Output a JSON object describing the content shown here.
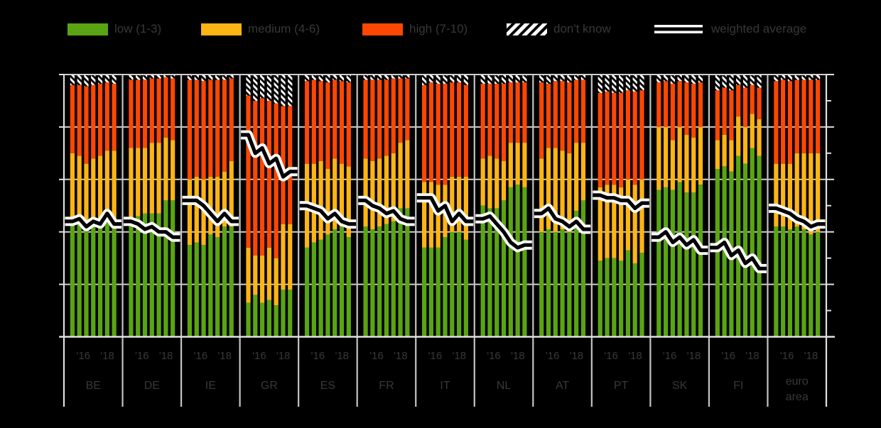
{
  "legend": {
    "items": [
      {
        "label": "low (1-3)",
        "swatch": "low-color-swatch"
      },
      {
        "label": "medium (4-6)",
        "swatch": "medium-color-swatch"
      },
      {
        "label": "high (7-10)",
        "swatch": "high-color-swatch"
      },
      {
        "label": "don't know",
        "swatch": "dont-know-hatch-swatch"
      },
      {
        "label": "weighted average",
        "swatch": "weighted-average-line-swatch"
      }
    ]
  },
  "chart_data": {
    "type": "bar",
    "stacked": true,
    "grid": true,
    "legend_position": "top",
    "ylim": [
      0,
      100
    ],
    "y_major_step": 20,
    "y_minor_step": 10,
    "x_tick_labels": [
      "'16",
      "'18"
    ],
    "bars_per_panel": 7,
    "series_labels": [
      "low (1-3)",
      "medium (4-6)",
      "high (7-10)",
      "don't know",
      "weighted average"
    ],
    "colors": {
      "low": "#5aa414",
      "medium": "#fdb515",
      "high": "#fd4703",
      "dont_know_bg": "#ffffff",
      "dont_know_stripe": "#000000",
      "line_core": "#000000",
      "line_casing": "#ffffff",
      "grid": "#cfcfcf",
      "axis": "#e0e0e0",
      "background": "#000000",
      "faint_text": "#383838"
    },
    "panels": [
      {
        "code": "BE",
        "low": [
          45,
          44,
          41,
          43,
          45,
          46,
          44
        ],
        "medium": [
          25,
          25,
          25,
          25,
          24,
          25,
          27
        ],
        "high": [
          26,
          27,
          29.5,
          28,
          27.5,
          26,
          25.5
        ],
        "dont_know": [
          4,
          4,
          4.5,
          4,
          3.5,
          3,
          3.5
        ],
        "weighted_average": [
          44,
          45,
          42,
          44,
          43,
          47,
          43
        ]
      },
      {
        "code": "DE",
        "low": [
          44,
          46,
          47,
          47,
          47,
          52,
          52
        ],
        "medium": [
          28,
          26,
          25,
          27,
          27,
          24,
          23
        ],
        "high": [
          26,
          26,
          26,
          24.5,
          24.5,
          23,
          23.5
        ],
        "dont_know": [
          2,
          2,
          2,
          1.5,
          1.5,
          1,
          1.5
        ],
        "weighted_average": [
          44,
          43,
          41,
          42,
          40,
          40,
          38
        ]
      },
      {
        "code": "IE",
        "low": [
          35,
          36,
          35,
          39,
          38,
          42,
          42
        ],
        "medium": [
          25,
          25,
          25,
          22,
          23,
          21,
          25
        ],
        "high": [
          38,
          37,
          37.5,
          37,
          37,
          35,
          31.5
        ],
        "dont_know": [
          2,
          2,
          2.5,
          2,
          2,
          2,
          1.5
        ],
        "weighted_average": [
          52,
          52,
          50,
          47,
          44,
          47,
          44
        ]
      },
      {
        "code": "GR",
        "low": [
          13,
          16,
          13,
          14,
          12,
          18,
          18
        ],
        "medium": [
          21,
          15,
          18,
          20,
          18,
          25,
          25
        ],
        "high": [
          58,
          59,
          60,
          56,
          59,
          45,
          45
        ],
        "dont_know": [
          8,
          10,
          9,
          10,
          11,
          12,
          12
        ],
        "weighted_average": [
          77,
          70,
          72,
          66,
          68,
          61,
          63
        ]
      },
      {
        "code": "ES",
        "low": [
          34,
          36,
          37,
          39,
          41,
          42,
          38
        ],
        "medium": [
          32,
          30,
          30,
          25,
          27,
          24,
          27
        ],
        "high": [
          31.5,
          32,
          30.5,
          33,
          30,
          31.5,
          32
        ],
        "dont_know": [
          2.5,
          2,
          2.5,
          3,
          2,
          2.5,
          3
        ],
        "weighted_average": [
          50,
          49,
          48,
          45,
          47,
          44,
          43
        ]
      },
      {
        "code": "FR",
        "low": [
          42,
          41,
          42,
          43,
          44,
          49,
          49
        ],
        "medium": [
          26,
          26,
          26,
          26,
          26,
          25,
          26
        ],
        "high": [
          30,
          31,
          30,
          29,
          28.5,
          24.5,
          23.5
        ],
        "dont_know": [
          2,
          2,
          2,
          2,
          1.5,
          1.5,
          1.5
        ],
        "weighted_average": [
          52,
          50,
          49,
          47,
          48,
          45,
          44
        ]
      },
      {
        "code": "IT",
        "low": [
          34,
          34,
          34,
          38,
          40,
          40,
          37
        ],
        "medium": [
          25,
          25,
          24,
          20,
          21,
          21,
          24
        ],
        "high": [
          37,
          38,
          38.5,
          38.5,
          36,
          36,
          35
        ],
        "dont_know": [
          4,
          3,
          3.5,
          3.5,
          3,
          3,
          4
        ],
        "weighted_average": [
          53,
          53,
          48,
          50,
          44,
          47,
          44
        ]
      },
      {
        "code": "NL",
        "low": [
          50,
          49,
          49,
          52,
          57,
          58,
          57
        ],
        "medium": [
          18,
          20,
          19,
          15,
          17,
          16,
          17
        ],
        "high": [
          28.5,
          27.5,
          28.5,
          29.5,
          23,
          23,
          23
        ],
        "dont_know": [
          3.5,
          3.5,
          3.5,
          3.5,
          3,
          3,
          3
        ],
        "weighted_average": [
          45,
          46,
          43,
          40,
          36,
          34,
          35
        ]
      },
      {
        "code": "AT",
        "low": [
          40,
          41,
          40,
          41,
          40,
          48,
          52
        ],
        "medium": [
          28,
          31,
          32,
          30,
          30,
          26,
          22
        ],
        "high": [
          29,
          24.5,
          25.5,
          26.5,
          27,
          24,
          24
        ],
        "dont_know": [
          3,
          3.5,
          2.5,
          2.5,
          3,
          2,
          2
        ],
        "weighted_average": [
          47,
          49,
          45,
          44,
          42,
          44,
          41
        ]
      },
      {
        "code": "PT",
        "low": [
          29,
          30,
          30,
          29,
          33,
          28,
          32
        ],
        "medium": [
          28,
          28,
          28,
          28,
          27,
          30,
          28
        ],
        "high": [
          36,
          35.5,
          35,
          36,
          34,
          35.5,
          34
        ],
        "dont_know": [
          7,
          6.5,
          7,
          7,
          6,
          6.5,
          6
        ],
        "weighted_average": [
          54,
          53,
          53,
          52,
          52,
          49,
          51
        ]
      },
      {
        "code": "SK",
        "low": [
          56,
          57,
          56,
          59,
          55,
          55,
          58
        ],
        "medium": [
          24,
          23,
          19,
          21,
          22,
          21,
          22
        ],
        "high": [
          17,
          17.5,
          21.5,
          17.5,
          20,
          20.5,
          17
        ],
        "dont_know": [
          3,
          2.5,
          3.5,
          2.5,
          3,
          3.5,
          3
        ],
        "weighted_average": [
          38,
          40,
          36,
          38,
          35,
          37,
          33
        ]
      },
      {
        "code": "FI",
        "low": [
          64,
          65,
          63,
          69,
          66,
          72,
          69
        ],
        "medium": [
          11,
          12,
          12,
          15,
          14,
          13,
          14
        ],
        "high": [
          19,
          18,
          19,
          12,
          15,
          11,
          12
        ],
        "dont_know": [
          6,
          5,
          6,
          4,
          5,
          4,
          5
        ],
        "weighted_average": [
          34,
          36,
          31,
          33,
          28,
          30,
          26
        ]
      },
      {
        "code": "euro area",
        "code_lines": [
          "euro",
          "area"
        ],
        "low": [
          42,
          42,
          41,
          42,
          41,
          39,
          40
        ],
        "medium": [
          24,
          24,
          25,
          28,
          29,
          31,
          30
        ],
        "high": [
          31.5,
          32,
          31.5,
          28,
          28,
          28,
          28
        ],
        "dont_know": [
          2.5,
          2,
          2.5,
          2,
          2,
          2,
          2
        ],
        "weighted_average": [
          49,
          48,
          47,
          45,
          44,
          42,
          43
        ]
      }
    ]
  }
}
